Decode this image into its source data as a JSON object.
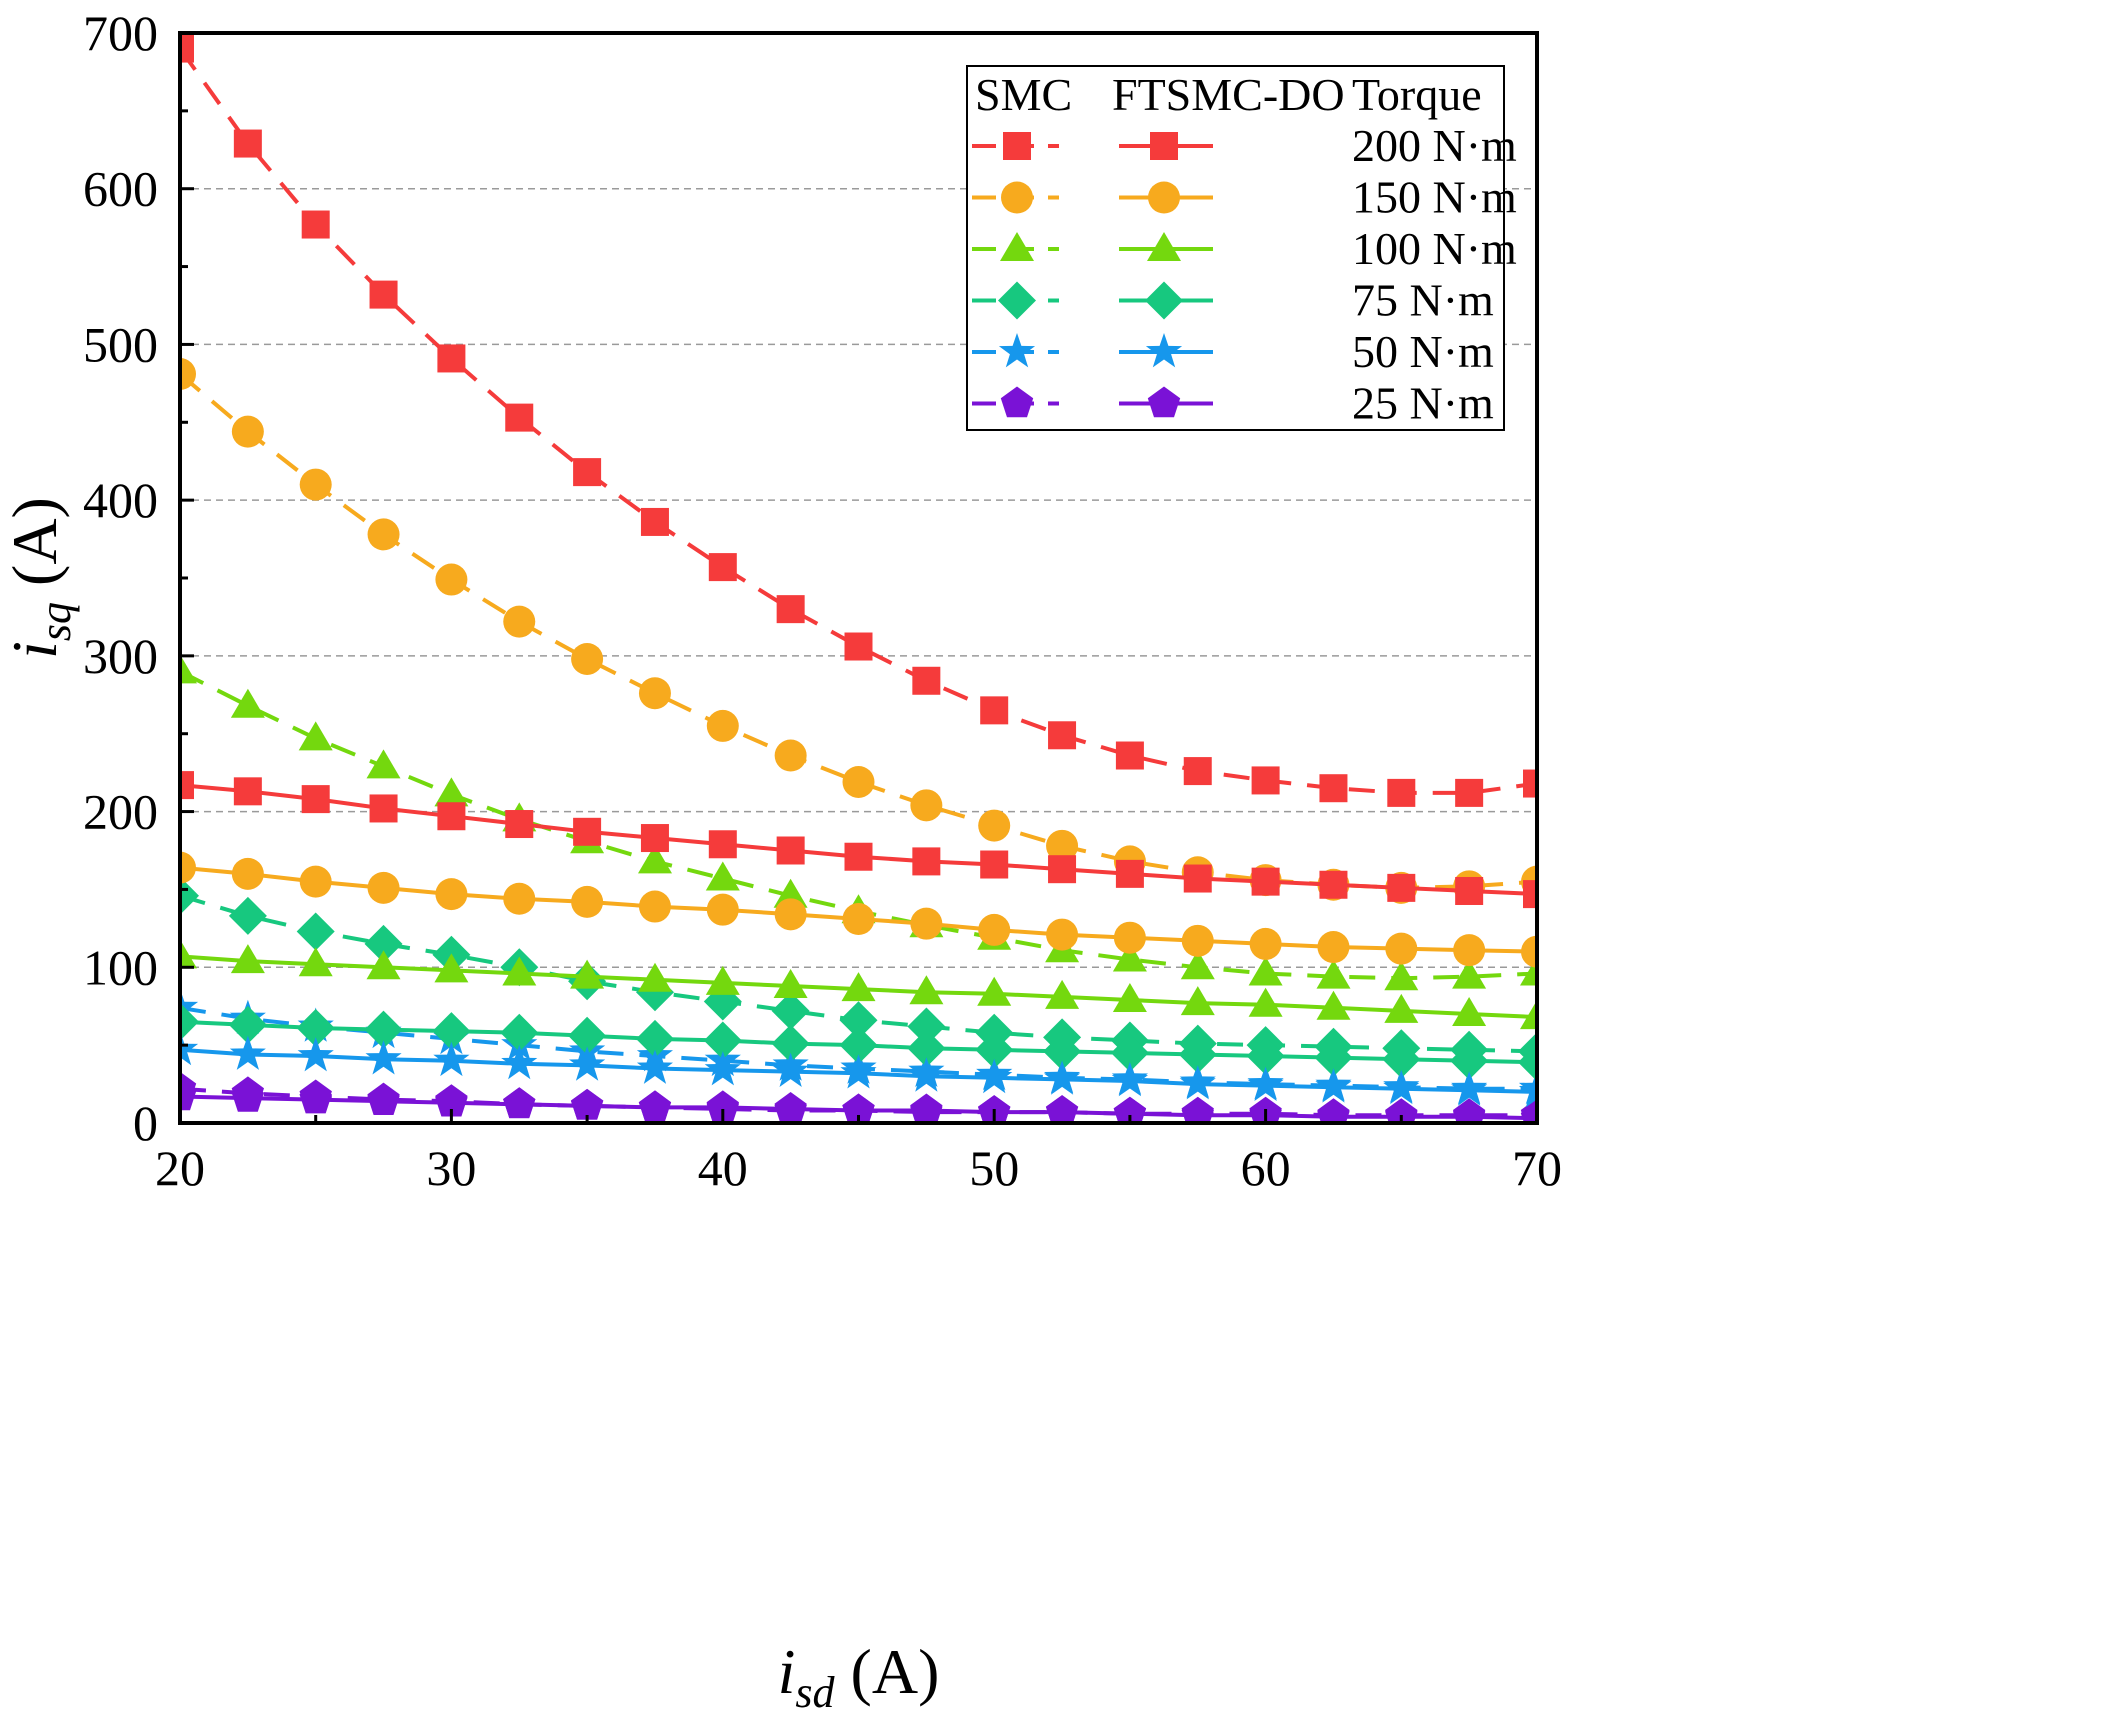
{
  "chart_data": {
    "type": "line",
    "xlabel": {
      "main": "i",
      "sub": "sd",
      "unit": " (A)"
    },
    "ylabel": {
      "main": "i",
      "sub": "sq",
      "unit": " (A)"
    },
    "xlim": [
      20,
      70
    ],
    "ylim": [
      0,
      700
    ],
    "xticks": [
      20,
      30,
      40,
      50,
      60,
      70
    ],
    "yticks": [
      0,
      100,
      200,
      300,
      400,
      500,
      600,
      700
    ],
    "grid": "horizontal-dashed",
    "legend": {
      "position": "top-right",
      "headers": [
        "SMC",
        "FTSMC-DO",
        "Torque"
      ],
      "entries": [
        {
          "torque": "200 N·m",
          "color": "#f53b3b",
          "marker": "square"
        },
        {
          "torque": "150 N·m",
          "color": "#f7aa1e",
          "marker": "circle"
        },
        {
          "torque": "100 N·m",
          "color": "#74d80e",
          "marker": "triangle"
        },
        {
          "torque": "75 N·m",
          "color": "#17c87f",
          "marker": "diamond"
        },
        {
          "torque": "50 N·m",
          "color": "#1697ec",
          "marker": "star"
        },
        {
          "torque": "25 N·m",
          "color": "#7a12d6",
          "marker": "pentagon"
        }
      ]
    },
    "x": [
      20,
      22.5,
      25,
      27.5,
      30,
      32.5,
      35,
      37.5,
      40,
      42.5,
      45,
      47.5,
      50,
      52.5,
      55,
      57.5,
      60,
      62.5,
      65,
      67.5,
      70
    ],
    "series": [
      {
        "name": "SMC 200 N·m",
        "method": "SMC",
        "torque": "200 N·m",
        "color": "#f53b3b",
        "marker": "square",
        "dash": true,
        "values": [
          690,
          629,
          577,
          532,
          491,
          453,
          418,
          386,
          357,
          330,
          306,
          284,
          265,
          249,
          236,
          226,
          220,
          215,
          212,
          212,
          218
        ]
      },
      {
        "name": "SMC 150 N·m",
        "method": "SMC",
        "torque": "150 N·m",
        "color": "#f7aa1e",
        "marker": "circle",
        "dash": true,
        "values": [
          481,
          444,
          410,
          378,
          349,
          322,
          298,
          276,
          255,
          236,
          219,
          204,
          191,
          178,
          168,
          161,
          156,
          153,
          151,
          152,
          155
        ]
      },
      {
        "name": "SMC 100 N·m",
        "method": "SMC",
        "torque": "100 N·m",
        "color": "#74d80e",
        "marker": "triangle",
        "dash": true,
        "values": [
          290,
          268,
          247,
          229,
          211,
          195,
          181,
          168,
          157,
          146,
          136,
          127,
          119,
          111,
          105,
          100,
          96,
          94,
          93,
          94,
          96
        ]
      },
      {
        "name": "SMC 75 N·m",
        "method": "SMC",
        "torque": "75 N·m",
        "color": "#17c87f",
        "marker": "diamond",
        "dash": true,
        "values": [
          146,
          133,
          123,
          115,
          108,
          100,
          91,
          84,
          78,
          72,
          66,
          62,
          58,
          55,
          53,
          51,
          50,
          49,
          48,
          47,
          46
        ]
      },
      {
        "name": "SMC 50 N·m",
        "method": "SMC",
        "torque": "50 N·m",
        "color": "#1697ec",
        "marker": "star",
        "dash": true,
        "values": [
          74,
          67,
          62,
          58,
          54,
          50,
          46,
          43,
          40,
          37,
          35,
          33,
          31,
          29,
          28,
          26,
          25,
          24,
          23,
          22,
          22
        ]
      },
      {
        "name": "SMC 25 N·m",
        "method": "SMC",
        "torque": "25 N·m",
        "color": "#7a12d6",
        "marker": "pentagon",
        "dash": true,
        "values": [
          22,
          19,
          17,
          15,
          14,
          12,
          11,
          10,
          9,
          8,
          8,
          7,
          7,
          7,
          6,
          6,
          6,
          5,
          5,
          5,
          5
        ]
      },
      {
        "name": "FTSMC-DO 200 N·m",
        "method": "FTSMC-DO",
        "torque": "200 N·m",
        "color": "#f53b3b",
        "marker": "square",
        "dash": false,
        "values": [
          217,
          213,
          208,
          202,
          197,
          192,
          187,
          183,
          179,
          175,
          171,
          168,
          166,
          163,
          160,
          157,
          155,
          153,
          151,
          149,
          147
        ]
      },
      {
        "name": "FTSMC-DO 150 N·m",
        "method": "FTSMC-DO",
        "torque": "150 N·m",
        "color": "#f7aa1e",
        "marker": "circle",
        "dash": false,
        "values": [
          164,
          160,
          155,
          151,
          147,
          144,
          142,
          139,
          137,
          134,
          131,
          128,
          124,
          121,
          119,
          117,
          115,
          113,
          112,
          111,
          110
        ]
      },
      {
        "name": "FTSMC-DO 100 N·m",
        "method": "FTSMC-DO",
        "torque": "100 N·m",
        "color": "#74d80e",
        "marker": "triangle",
        "dash": false,
        "values": [
          107,
          104,
          102,
          100,
          98,
          96,
          94,
          92,
          90,
          88,
          86,
          84,
          83,
          81,
          79,
          77,
          76,
          74,
          72,
          70,
          68
        ]
      },
      {
        "name": "FTSMC-DO 75 N·m",
        "method": "FTSMC-DO",
        "torque": "75 N·m",
        "color": "#17c87f",
        "marker": "diamond",
        "dash": false,
        "values": [
          65,
          63,
          61,
          60,
          59,
          58,
          56,
          54,
          53,
          51,
          50,
          48,
          47,
          46,
          45,
          44,
          43,
          42,
          41,
          40,
          39
        ]
      },
      {
        "name": "FTSMC-DO 50 N·m",
        "method": "FTSMC-DO",
        "torque": "50 N·m",
        "color": "#1697ec",
        "marker": "star",
        "dash": false,
        "values": [
          47,
          44,
          43,
          41,
          40,
          38,
          37,
          35,
          34,
          33,
          32,
          30,
          29,
          28,
          27,
          25,
          24,
          23,
          22,
          21,
          20
        ]
      },
      {
        "name": "FTSMC-DO 25 N·m",
        "method": "FTSMC-DO",
        "torque": "25 N·m",
        "color": "#7a12d6",
        "marker": "pentagon",
        "dash": false,
        "values": [
          17,
          16,
          15,
          14,
          13,
          12,
          11,
          10,
          10,
          9,
          8,
          8,
          7,
          7,
          6,
          5,
          5,
          4,
          4,
          4,
          3
        ]
      }
    ]
  }
}
